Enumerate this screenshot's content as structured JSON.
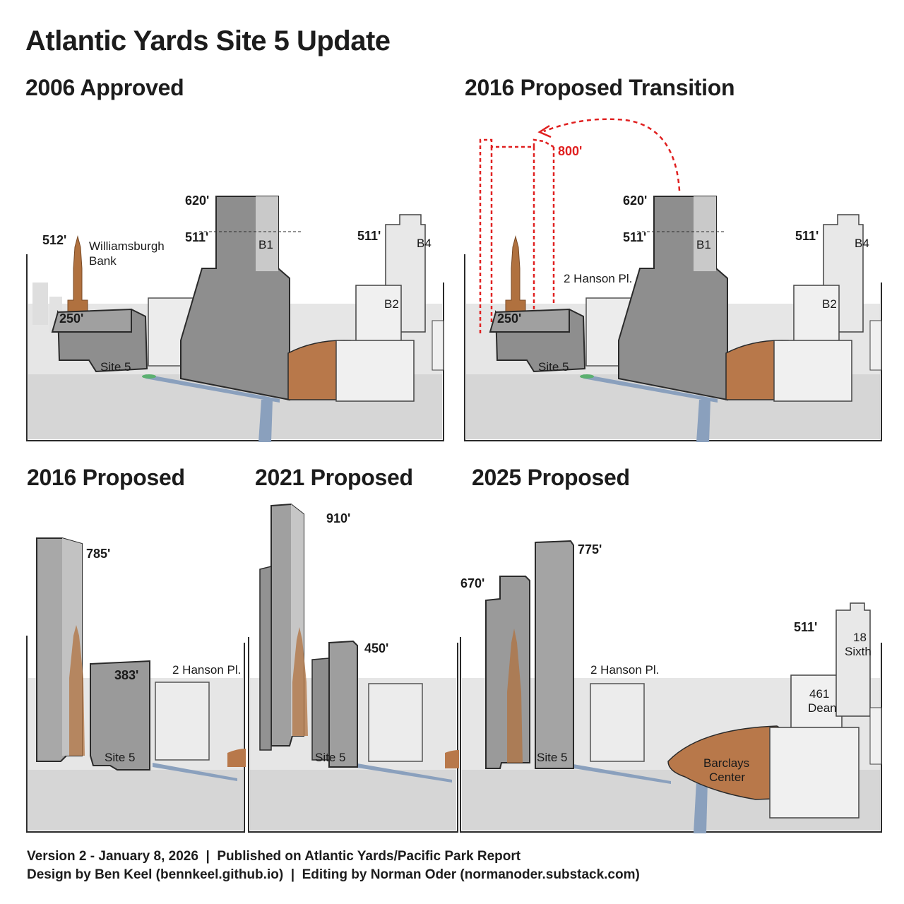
{
  "title": "Atlantic Yards Site 5 Update",
  "panels": {
    "p2006": {
      "title": "2006 Approved",
      "labels": {
        "wb_height": "512'",
        "wb_name_1": "Williamsburgh",
        "wb_name_2": "Bank",
        "site5_height": "250'",
        "site5": "Site 5",
        "b1_top": "620'",
        "b1_mid": "511'",
        "b1": "B1",
        "b4_height": "511'",
        "b4": "B4",
        "b2": "B2"
      }
    },
    "p2016t": {
      "title": "2016 Proposed Transition",
      "labels": {
        "transfer_height": "800'",
        "b1_top": "620'",
        "b1_mid": "511'",
        "b1": "B1",
        "hanson": "2 Hanson Pl.",
        "b4_height": "511'",
        "b4": "B4",
        "b2": "B2",
        "site5_height": "250'",
        "site5": "Site 5"
      }
    },
    "p2016": {
      "title": "2016 Proposed",
      "labels": {
        "tower_height": "785'",
        "podium_height": "383'",
        "hanson": "2 Hanson Pl.",
        "site5": "Site 5"
      }
    },
    "p2021": {
      "title": "2021 Proposed",
      "labels": {
        "tower_height": "910'",
        "second_height": "450'",
        "site5": "Site 5"
      }
    },
    "p2025": {
      "title": "2025 Proposed",
      "labels": {
        "tower_a": "670'",
        "tower_b": "775'",
        "hanson": "2 Hanson Pl.",
        "dean_1": "461",
        "dean_2": "Dean",
        "sixth_height": "511'",
        "sixth_1": "18",
        "sixth_2": "Sixth",
        "barclays_1": "Barclays",
        "barclays_2": "Center",
        "site5": "Site 5"
      }
    }
  },
  "footer": {
    "line1": "Version 2 - January 8, 2026  |  Published on Atlantic Yards/Pacific Park Report",
    "line2": "Design by Ben Keel (bennkeel.github.io)  |  Editing by Norman Oder (normanoder.substack.com)"
  },
  "colors": {
    "tower_gray": "#8e8e8e",
    "tower_dark": "#6d6d6d",
    "tower_light": "#b9b9b9",
    "bank_brown": "#b0713f",
    "arena_brown": "#b8784a",
    "street_blue": "#8aa0bd",
    "outline": "#2a2a2a",
    "red": "#e02020"
  }
}
